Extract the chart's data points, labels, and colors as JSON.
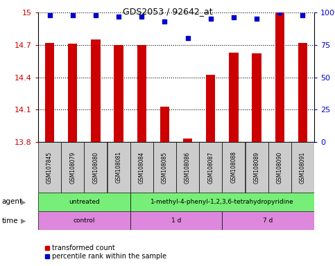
{
  "title": "GDS2053 / 92642_at",
  "samples": [
    "GSM107845",
    "GSM108079",
    "GSM108080",
    "GSM108081",
    "GSM108084",
    "GSM108085",
    "GSM108086",
    "GSM108087",
    "GSM108088",
    "GSM108089",
    "GSM108090",
    "GSM108091"
  ],
  "bar_values": [
    14.72,
    14.71,
    14.75,
    14.7,
    14.7,
    14.13,
    13.83,
    14.42,
    14.63,
    14.62,
    15.0,
    14.72
  ],
  "percentile_values": [
    98,
    98,
    98,
    97,
    97,
    93,
    80,
    95,
    96,
    95,
    100,
    98
  ],
  "ylim_left": [
    13.8,
    15.0
  ],
  "yticks_left": [
    13.8,
    14.1,
    14.4,
    14.7,
    15.0
  ],
  "ytick_labels_left": [
    "13.8",
    "14.1",
    "14.4",
    "14.7",
    "15"
  ],
  "ylim_right": [
    0,
    100
  ],
  "yticks_right": [
    0,
    25,
    50,
    75,
    100
  ],
  "ytick_labels_right": [
    "0",
    "25",
    "50",
    "75",
    "100%"
  ],
  "bar_color": "#cc0000",
  "percentile_color": "#0000cc",
  "agent_groups": [
    {
      "label": "untreated",
      "start": 0,
      "end": 3,
      "color": "#77ee77"
    },
    {
      "label": "1-methyl-4-phenyl-1,2,3,6-tetrahydropyridine",
      "start": 4,
      "end": 11,
      "color": "#77ee77"
    }
  ],
  "time_groups": [
    {
      "label": "control",
      "start": 0,
      "end": 3,
      "color": "#dd88dd"
    },
    {
      "label": "1 d",
      "start": 4,
      "end": 7,
      "color": "#dd88dd"
    },
    {
      "label": "7 d",
      "start": 8,
      "end": 11,
      "color": "#dd88dd"
    }
  ],
  "agent_label": "agent",
  "time_label": "time",
  "legend_bar_label": "transformed count",
  "legend_pct_label": "percentile rank within the sample",
  "sample_box_color": "#cccccc",
  "left_tick_color": "#cc0000",
  "right_tick_color": "#0000cc",
  "bar_width": 0.4
}
